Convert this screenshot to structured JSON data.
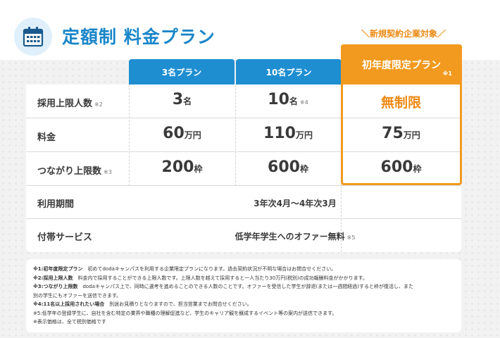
{
  "header": {
    "title": "定額制 料金プラン",
    "new_target": "＼新規契約企業対象／"
  },
  "plans": {
    "p3": "3名プラン",
    "p10": "10名プラン",
    "first": "初年度限定プラン",
    "first_note": "※1"
  },
  "rows": {
    "hires": {
      "label": "採用上限人数",
      "note": "※2",
      "p3_value": "3",
      "p3_unit": "名",
      "p10_value": "10",
      "p10_unit": "名",
      "p10_note": "※4",
      "first_value": "無制限"
    },
    "price": {
      "label": "料金",
      "p3_value": "60",
      "p3_unit": "万円",
      "p10_value": "110",
      "p10_unit": "万円",
      "first_value": "75",
      "first_unit": "万円"
    },
    "connections": {
      "label": "つながり上限数",
      "note": "※3",
      "p3_value": "200",
      "p3_unit": "枠",
      "p10_value": "600",
      "p10_unit": "枠",
      "first_value": "600",
      "first_unit": "枠"
    },
    "period": {
      "label": "利用期間",
      "value": "3年次4月〜4年次3月"
    },
    "service": {
      "label": "付帯サービス",
      "value": "低学年学生へのオファー無料",
      "note": "※5"
    }
  },
  "footnotes": {
    "n1_head": "※1:初年度限定プラン",
    "n1_body": "初めてdodaキャンパスを利用する企業限定プランになります。過去契約状況が不明な場合はお問合せください。",
    "n2_head": "※2:採用上限人数",
    "n2_body": "料金内で採用することができる上限人数です。上限人数を越えて採用すると一人当たり30万円(税別)の成功報酬料金がかかります。",
    "n3_head": "※3:つながり上限数",
    "n3_body": "dodaキャンパス上で、同時に選考を進めることのできる人数のことです。オファーを受信した学生が辞退(または一週間経過)すると枠が復活し、また",
    "n3_body2": "別の学生にもオファーを送信できます。",
    "n4_head": "※4:11名以上採用されたい場合",
    "n4_body": "別途お見積りとなりますので、担当営業までお問合せください。",
    "n5": "※5:低学年の登録学生に、自社を含む特定の業界や職種の理解促進など、学生のキャリア観を醸成するイベント等の案内が送信できます。",
    "n6": "※表示価格は、全て税別価格です"
  },
  "colors": {
    "blue": "#1f8ed1",
    "orange": "#f29a1f",
    "title_blue": "#1a86c9"
  },
  "icons": {
    "calendar": "calendar-icon"
  }
}
